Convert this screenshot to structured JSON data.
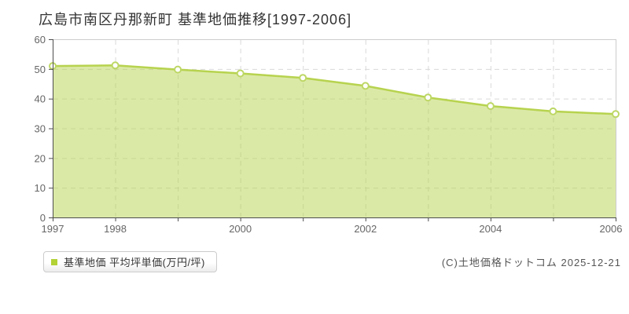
{
  "title": "広島市南区丹那新町 基準地価推移[1997-2006]",
  "legend": {
    "label": "基準地価 平均坪単価(万円/坪)",
    "marker_color": "#b2d235"
  },
  "copyright": "(C)土地価格ドットコム 2025-12-21",
  "chart_data": {
    "type": "area",
    "title": "広島市南区丹那新町 基準地価推移[1997-2006]",
    "x": [
      1997,
      1998,
      1999,
      2000,
      2001,
      2002,
      2003,
      2004,
      2005,
      2006
    ],
    "values": [
      51.0,
      51.2,
      49.8,
      48.5,
      47.0,
      44.3,
      40.4,
      37.5,
      35.7,
      34.8
    ],
    "series_name": "基準地価 平均坪単価(万円/坪)",
    "xlabel": "",
    "ylabel": "",
    "ylim": [
      0,
      60
    ],
    "yticks": [
      0,
      10,
      20,
      30,
      40,
      50,
      60
    ],
    "xtick_labels": [
      "1997",
      "1998",
      "2000",
      "2002",
      "2004",
      "2006"
    ],
    "xtick_years": [
      1997,
      1998,
      2000,
      2002,
      2004,
      2006
    ],
    "grid": "dashed",
    "legend_position": "bottom-left",
    "colors": {
      "line": "#b7d34f",
      "fill": "rgba(183,211,79,0.5)",
      "marker_fill": "#ffffff",
      "marker_ring": "#bdd765",
      "grid": "#d9d9d9",
      "axis": "#4d4d4d",
      "border": "#cccccc",
      "tick_text": "#666666"
    }
  }
}
